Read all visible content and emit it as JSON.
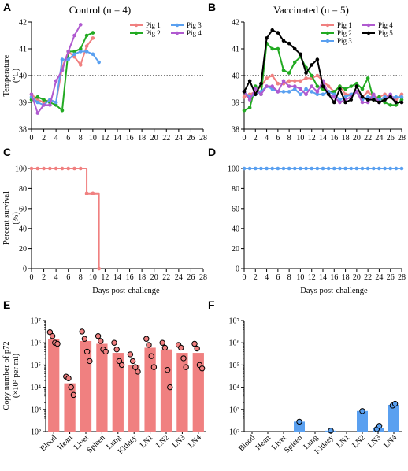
{
  "panel_letters": [
    "A",
    "B",
    "C",
    "D",
    "E",
    "F"
  ],
  "chart_data": [
    {
      "panel": "A",
      "type": "line",
      "title": "Control (n = 4)",
      "xlabel": "",
      "ylabel": "Temperature (°C)",
      "xlim": [
        0,
        28
      ],
      "ylim": [
        38,
        42
      ],
      "xticks": [
        0,
        2,
        4,
        6,
        8,
        10,
        12,
        14,
        16,
        18,
        20,
        22,
        24,
        26,
        28
      ],
      "yticks": [
        38,
        39,
        40,
        41,
        42
      ],
      "reference_line": 40,
      "legend_position": "top-right",
      "series": [
        {
          "name": "Pig 1",
          "color": "#f08080",
          "x": [
            0,
            1,
            2,
            3,
            4,
            5,
            6,
            7,
            8,
            9,
            10
          ],
          "y": [
            39.3,
            39.1,
            39.0,
            39.1,
            39.0,
            40.3,
            40.9,
            40.7,
            40.4,
            41.1,
            41.4
          ]
        },
        {
          "name": "Pig 2",
          "color": "#22aa22",
          "x": [
            0,
            1,
            2,
            3,
            4,
            5,
            6,
            7,
            8,
            9,
            10
          ],
          "y": [
            39.1,
            39.2,
            39.1,
            39.0,
            38.9,
            38.7,
            40.9,
            40.9,
            41.0,
            41.5,
            41.6
          ]
        },
        {
          "name": "Pig 3",
          "color": "#5aa0f0",
          "x": [
            0,
            1,
            2,
            3,
            4,
            5,
            6,
            7,
            8,
            9,
            10,
            11
          ],
          "y": [
            39.2,
            39.0,
            38.9,
            39.1,
            39.0,
            40.6,
            40.6,
            40.8,
            40.9,
            40.9,
            40.8,
            40.5
          ]
        },
        {
          "name": "Pig 4",
          "color": "#b05ad0",
          "x": [
            0,
            1,
            2,
            3,
            4,
            5,
            6,
            7,
            8
          ],
          "y": [
            39.3,
            38.6,
            38.9,
            38.9,
            39.8,
            40.2,
            40.9,
            41.5,
            41.9
          ]
        }
      ]
    },
    {
      "panel": "B",
      "type": "line",
      "title": "Vaccinated (n = 5)",
      "xlabel": "",
      "ylabel": "",
      "xlim": [
        0,
        28
      ],
      "ylim": [
        38,
        42
      ],
      "xticks": [
        0,
        2,
        4,
        6,
        8,
        10,
        12,
        14,
        16,
        18,
        20,
        22,
        24,
        26,
        28
      ],
      "yticks": [
        38,
        39,
        40,
        41,
        42
      ],
      "reference_line": 40,
      "legend_position": "top-right",
      "series": [
        {
          "name": "Pig 1",
          "color": "#f08080",
          "x": [
            0,
            1,
            2,
            3,
            4,
            5,
            6,
            7,
            8,
            9,
            10,
            11,
            12,
            13,
            14,
            15,
            16,
            17,
            18,
            19,
            20,
            21,
            22,
            23,
            24,
            25,
            26,
            27,
            28
          ],
          "y": [
            39.2,
            39.3,
            39.4,
            39.6,
            39.9,
            40.0,
            39.7,
            39.7,
            39.8,
            39.8,
            39.8,
            39.9,
            39.9,
            40.0,
            39.8,
            39.6,
            39.4,
            39.6,
            39.3,
            39.3,
            39.4,
            39.2,
            39.4,
            39.2,
            39.2,
            39.3,
            39.2,
            39.1,
            39.3
          ]
        },
        {
          "name": "Pig 2",
          "color": "#22aa22",
          "x": [
            0,
            1,
            2,
            3,
            4,
            5,
            6,
            7,
            8,
            9,
            10,
            11,
            12,
            13,
            14,
            15,
            16,
            17,
            18,
            19,
            20,
            21,
            22,
            23,
            24,
            25,
            26,
            27,
            28
          ],
          "y": [
            38.7,
            38.8,
            39.6,
            39.3,
            41.2,
            41.0,
            41.0,
            40.2,
            40.1,
            40.5,
            40.7,
            40.3,
            40.0,
            39.6,
            39.5,
            39.4,
            39.4,
            39.6,
            39.5,
            39.6,
            39.7,
            39.5,
            39.9,
            39.1,
            39.2,
            39.0,
            38.9,
            38.9,
            39.1
          ]
        },
        {
          "name": "Pig 3",
          "color": "#5aa0f0",
          "x": [
            0,
            1,
            2,
            3,
            4,
            5,
            6,
            7,
            8,
            9,
            10,
            11,
            12,
            13,
            14,
            15,
            16,
            17,
            18,
            19,
            20,
            21,
            22,
            23,
            24,
            25,
            26,
            27,
            28
          ],
          "y": [
            39.4,
            39.2,
            39.3,
            39.4,
            39.6,
            39.5,
            39.4,
            39.4,
            39.4,
            39.5,
            39.3,
            39.5,
            39.4,
            39.3,
            39.3,
            39.4,
            39.3,
            39.1,
            39.2,
            39.3,
            39.4,
            39.1,
            39.2,
            39.2,
            39.1,
            39.2,
            39.2,
            39.2,
            39.2
          ]
        },
        {
          "name": "Pig 4",
          "color": "#b05ad0",
          "x": [
            0,
            1,
            2,
            3,
            4,
            5,
            6,
            7,
            8,
            9,
            10,
            11,
            12,
            13,
            14,
            15,
            16,
            17,
            18,
            19,
            20,
            21,
            22,
            23,
            24,
            25,
            26,
            27,
            28
          ],
          "y": [
            39.4,
            39.1,
            39.5,
            39.3,
            39.6,
            39.6,
            39.4,
            39.8,
            39.6,
            39.6,
            39.5,
            39.3,
            39.6,
            39.4,
            39.8,
            39.3,
            39.2,
            39.0,
            39.1,
            39.2,
            39.4,
            39.0,
            39.0,
            39.3,
            39.0,
            39.1,
            39.3,
            39.0,
            39.0
          ]
        },
        {
          "name": "Pig 5",
          "color": "#000000",
          "x": [
            0,
            1,
            2,
            3,
            4,
            5,
            6,
            7,
            8,
            9,
            10,
            11,
            12,
            13,
            14,
            15,
            16,
            17,
            18,
            19,
            20,
            21,
            22,
            23,
            24,
            25,
            26,
            27,
            28
          ],
          "y": [
            39.4,
            39.8,
            39.3,
            39.7,
            41.4,
            41.7,
            41.6,
            41.3,
            41.2,
            41.0,
            40.8,
            40.1,
            40.4,
            40.6,
            39.6,
            39.3,
            39.0,
            39.5,
            39.0,
            39.1,
            39.6,
            39.2,
            39.1,
            39.1,
            39.0,
            39.1,
            39.2,
            39.0,
            39.0
          ]
        }
      ]
    },
    {
      "panel": "C",
      "type": "line",
      "title": "",
      "xlabel": "Days post-challenge",
      "ylabel": "Percent survival (%)",
      "xlim": [
        0,
        28
      ],
      "ylim": [
        0,
        100
      ],
      "xticks": [
        0,
        2,
        4,
        6,
        8,
        10,
        12,
        14,
        16,
        18,
        20,
        22,
        24,
        26,
        28
      ],
      "yticks": [
        0,
        20,
        40,
        60,
        80,
        100
      ],
      "step": true,
      "series": [
        {
          "name": "",
          "color": "#f08080",
          "x": [
            0,
            1,
            2,
            3,
            4,
            5,
            6,
            7,
            8,
            9,
            10,
            11
          ],
          "y": [
            100,
            100,
            100,
            100,
            100,
            100,
            100,
            100,
            100,
            75,
            75,
            0
          ]
        }
      ]
    },
    {
      "panel": "D",
      "type": "line",
      "title": "",
      "xlabel": "Days post-challenge",
      "ylabel": "",
      "xlim": [
        0,
        28
      ],
      "ylim": [
        0,
        100
      ],
      "xticks": [
        0,
        2,
        4,
        6,
        8,
        10,
        12,
        14,
        16,
        18,
        20,
        22,
        24,
        26,
        28
      ],
      "yticks": [
        0,
        20,
        40,
        60,
        80,
        100
      ],
      "step": true,
      "series": [
        {
          "name": "",
          "color": "#5aa0f0",
          "x": [
            0,
            1,
            2,
            3,
            4,
            5,
            6,
            7,
            8,
            9,
            10,
            11,
            12,
            13,
            14,
            15,
            16,
            17,
            18,
            19,
            20,
            21,
            22,
            23,
            24,
            25,
            26,
            27,
            28
          ],
          "y": [
            100,
            100,
            100,
            100,
            100,
            100,
            100,
            100,
            100,
            100,
            100,
            100,
            100,
            100,
            100,
            100,
            100,
            100,
            100,
            100,
            100,
            100,
            100,
            100,
            100,
            100,
            100,
            100,
            100
          ]
        }
      ]
    },
    {
      "panel": "E",
      "type": "bar",
      "title": "",
      "xlabel": "",
      "ylabel": "Copy number of p72 (×10³ per ml)",
      "log_scale": true,
      "ylim": [
        100,
        10000000
      ],
      "ytick_labels": [
        "10²",
        "10³",
        "10⁴",
        "10⁵",
        "10⁶",
        "10⁷"
      ],
      "color": "#f08080",
      "categories": [
        "Blood",
        "Heart",
        "Liver",
        "Spleen",
        "Lung",
        "Kidney",
        "LN1",
        "LN2",
        "LN3",
        "LN4"
      ],
      "values": [
        1500000,
        15000,
        1200000,
        900000,
        350000,
        100000,
        600000,
        500000,
        350000,
        350000
      ],
      "points": [
        [
          3000000,
          2000000,
          1000000,
          900000
        ],
        [
          30000,
          25000,
          10000,
          4500
        ],
        [
          3200000,
          1500000,
          400000,
          150000
        ],
        [
          2000000,
          1200000,
          500000,
          400000
        ],
        [
          1000000,
          500000,
          150000,
          100000
        ],
        [
          300000,
          150000,
          80000,
          50000
        ],
        [
          1500000,
          800000,
          250000,
          80000
        ],
        [
          1000000,
          600000,
          60000,
          10000
        ],
        [
          800000,
          600000,
          200000,
          80000
        ],
        [
          900000,
          550000,
          100000,
          70000
        ]
      ]
    },
    {
      "panel": "F",
      "type": "bar",
      "title": "",
      "xlabel": "",
      "ylabel": "",
      "log_scale": true,
      "ylim": [
        100,
        10000000
      ],
      "ytick_labels": [
        "10²",
        "10³",
        "10⁴",
        "10⁵",
        "10⁶",
        "10⁷"
      ],
      "color": "#5aa0f0",
      "categories": [
        "Blood",
        "Heart",
        "Liver",
        "Spleen",
        "Lung",
        "Kidney",
        "LN1",
        "LN2",
        "LN3",
        "LN4"
      ],
      "values": [
        null,
        null,
        null,
        280,
        null,
        110,
        null,
        850,
        150,
        1600
      ],
      "points": [
        [],
        [],
        [],
        [
          280
        ],
        [],
        [
          110
        ],
        [],
        [
          850
        ],
        [
          130,
          180
        ],
        [
          1500,
          1800
        ]
      ]
    }
  ]
}
